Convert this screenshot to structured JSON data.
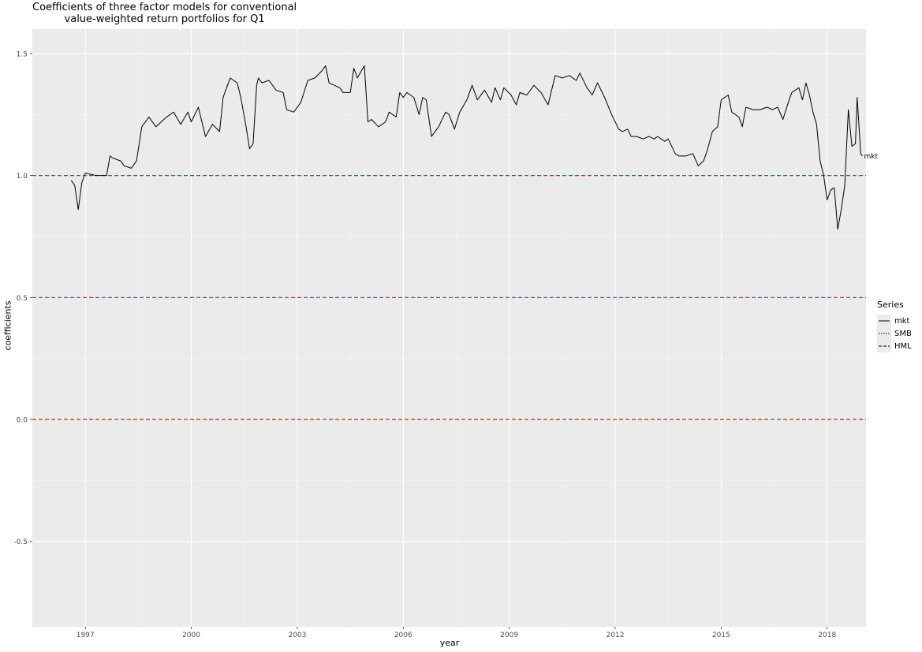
{
  "chart_data": {
    "type": "line",
    "title_line1": "Coefficients of three factor models for conventional",
    "title_line2": "value-weighted return portfolios for Q1",
    "xlabel": "year",
    "ylabel": "coefficients",
    "xlim": [
      1995.5,
      2019.1
    ],
    "ylim": [
      -0.85,
      1.6
    ],
    "x_ticks": [
      1997,
      2000,
      2003,
      2006,
      2009,
      2012,
      2015,
      2018
    ],
    "y_ticks": [
      -0.5,
      0.0,
      0.5,
      1.0,
      1.5
    ],
    "y_tick_labels": [
      "-0.5",
      "0.0",
      "0.5",
      "1.0",
      "1.5"
    ],
    "hlines": [
      0.0,
      0.5,
      1.0
    ],
    "hline_color": "#c0272d",
    "panel_bg": "#ebebeb",
    "grid": true,
    "legend": {
      "title": "Series",
      "position": "right",
      "items": [
        "mkt",
        "SMB",
        "HML"
      ]
    },
    "series": [
      {
        "name": "mkt",
        "linetype": "solid",
        "end_label": "mkt",
        "points": [
          [
            1996.6,
            0.98
          ],
          [
            1996.7,
            0.96
          ],
          [
            1996.8,
            0.86
          ],
          [
            1996.9,
            0.97
          ],
          [
            1997.0,
            1.01
          ],
          [
            1997.3,
            1.0
          ],
          [
            1997.6,
            1.0
          ],
          [
            1997.7,
            1.08
          ],
          [
            1997.8,
            1.07
          ],
          [
            1998.0,
            1.06
          ],
          [
            1998.1,
            1.04
          ],
          [
            1998.3,
            1.03
          ],
          [
            1998.45,
            1.06
          ],
          [
            1998.6,
            1.2
          ],
          [
            1998.8,
            1.24
          ],
          [
            1999.0,
            1.2
          ],
          [
            1999.3,
            1.24
          ],
          [
            1999.5,
            1.26
          ],
          [
            1999.7,
            1.21
          ],
          [
            1999.9,
            1.26
          ],
          [
            2000.0,
            1.22
          ],
          [
            2000.2,
            1.28
          ],
          [
            2000.4,
            1.16
          ],
          [
            2000.6,
            1.21
          ],
          [
            2000.8,
            1.18
          ],
          [
            2000.9,
            1.32
          ],
          [
            2001.1,
            1.4
          ],
          [
            2001.3,
            1.38
          ],
          [
            2001.4,
            1.32
          ],
          [
            2001.55,
            1.2
          ],
          [
            2001.65,
            1.11
          ],
          [
            2001.75,
            1.13
          ],
          [
            2001.85,
            1.37
          ],
          [
            2001.9,
            1.4
          ],
          [
            2002.0,
            1.38
          ],
          [
            2002.2,
            1.39
          ],
          [
            2002.4,
            1.35
          ],
          [
            2002.6,
            1.34
          ],
          [
            2002.7,
            1.27
          ],
          [
            2002.9,
            1.26
          ],
          [
            2003.1,
            1.3
          ],
          [
            2003.3,
            1.39
          ],
          [
            2003.5,
            1.4
          ],
          [
            2003.7,
            1.43
          ],
          [
            2003.8,
            1.45
          ],
          [
            2003.9,
            1.38
          ],
          [
            2004.2,
            1.36
          ],
          [
            2004.3,
            1.34
          ],
          [
            2004.5,
            1.34
          ],
          [
            2004.6,
            1.44
          ],
          [
            2004.7,
            1.4
          ],
          [
            2004.9,
            1.45
          ],
          [
            2005.0,
            1.22
          ],
          [
            2005.1,
            1.23
          ],
          [
            2005.3,
            1.2
          ],
          [
            2005.5,
            1.22
          ],
          [
            2005.6,
            1.26
          ],
          [
            2005.8,
            1.24
          ],
          [
            2005.9,
            1.34
          ],
          [
            2006.0,
            1.32
          ],
          [
            2006.1,
            1.34
          ],
          [
            2006.3,
            1.32
          ],
          [
            2006.45,
            1.25
          ],
          [
            2006.55,
            1.32
          ],
          [
            2006.65,
            1.31
          ],
          [
            2006.8,
            1.16
          ],
          [
            2007.0,
            1.2
          ],
          [
            2007.2,
            1.26
          ],
          [
            2007.3,
            1.25
          ],
          [
            2007.45,
            1.19
          ],
          [
            2007.6,
            1.26
          ],
          [
            2007.8,
            1.31
          ],
          [
            2007.95,
            1.37
          ],
          [
            2008.1,
            1.31
          ],
          [
            2008.3,
            1.35
          ],
          [
            2008.5,
            1.3
          ],
          [
            2008.6,
            1.36
          ],
          [
            2008.75,
            1.31
          ],
          [
            2008.85,
            1.36
          ],
          [
            2009.05,
            1.33
          ],
          [
            2009.2,
            1.29
          ],
          [
            2009.3,
            1.34
          ],
          [
            2009.5,
            1.33
          ],
          [
            2009.7,
            1.37
          ],
          [
            2009.9,
            1.34
          ],
          [
            2010.1,
            1.29
          ],
          [
            2010.3,
            1.41
          ],
          [
            2010.5,
            1.4
          ],
          [
            2010.7,
            1.41
          ],
          [
            2010.9,
            1.39
          ],
          [
            2011.0,
            1.42
          ],
          [
            2011.2,
            1.36
          ],
          [
            2011.35,
            1.33
          ],
          [
            2011.5,
            1.38
          ],
          [
            2011.7,
            1.32
          ],
          [
            2011.9,
            1.25
          ],
          [
            2012.1,
            1.19
          ],
          [
            2012.2,
            1.18
          ],
          [
            2012.35,
            1.19
          ],
          [
            2012.45,
            1.16
          ],
          [
            2012.6,
            1.16
          ],
          [
            2012.8,
            1.15
          ],
          [
            2012.95,
            1.16
          ],
          [
            2013.1,
            1.15
          ],
          [
            2013.2,
            1.16
          ],
          [
            2013.4,
            1.14
          ],
          [
            2013.5,
            1.15
          ],
          [
            2013.7,
            1.09
          ],
          [
            2013.8,
            1.08
          ],
          [
            2014.0,
            1.08
          ],
          [
            2014.2,
            1.09
          ],
          [
            2014.35,
            1.04
          ],
          [
            2014.5,
            1.06
          ],
          [
            2014.6,
            1.1
          ],
          [
            2014.75,
            1.18
          ],
          [
            2014.9,
            1.2
          ],
          [
            2015.0,
            1.31
          ],
          [
            2015.2,
            1.33
          ],
          [
            2015.3,
            1.26
          ],
          [
            2015.5,
            1.24
          ],
          [
            2015.6,
            1.2
          ],
          [
            2015.7,
            1.28
          ],
          [
            2015.9,
            1.27
          ],
          [
            2016.1,
            1.27
          ],
          [
            2016.3,
            1.28
          ],
          [
            2016.45,
            1.27
          ],
          [
            2016.6,
            1.28
          ],
          [
            2016.75,
            1.23
          ],
          [
            2016.9,
            1.3
          ],
          [
            2017.0,
            1.34
          ],
          [
            2017.2,
            1.36
          ],
          [
            2017.3,
            1.31
          ],
          [
            2017.4,
            1.38
          ],
          [
            2017.5,
            1.33
          ],
          [
            2017.6,
            1.26
          ],
          [
            2017.7,
            1.21
          ],
          [
            2017.8,
            1.06
          ],
          [
            2017.9,
            1.0
          ],
          [
            2018.0,
            0.9
          ],
          [
            2018.1,
            0.94
          ],
          [
            2018.2,
            0.95
          ],
          [
            2018.3,
            0.78
          ],
          [
            2018.4,
            0.86
          ],
          [
            2018.5,
            0.96
          ],
          [
            2018.6,
            1.27
          ],
          [
            2018.7,
            1.12
          ],
          [
            2018.8,
            1.13
          ],
          [
            2018.85,
            1.32
          ],
          [
            2018.95,
            1.09
          ],
          [
            2019.0,
            1.08
          ]
        ]
      }
    ]
  }
}
